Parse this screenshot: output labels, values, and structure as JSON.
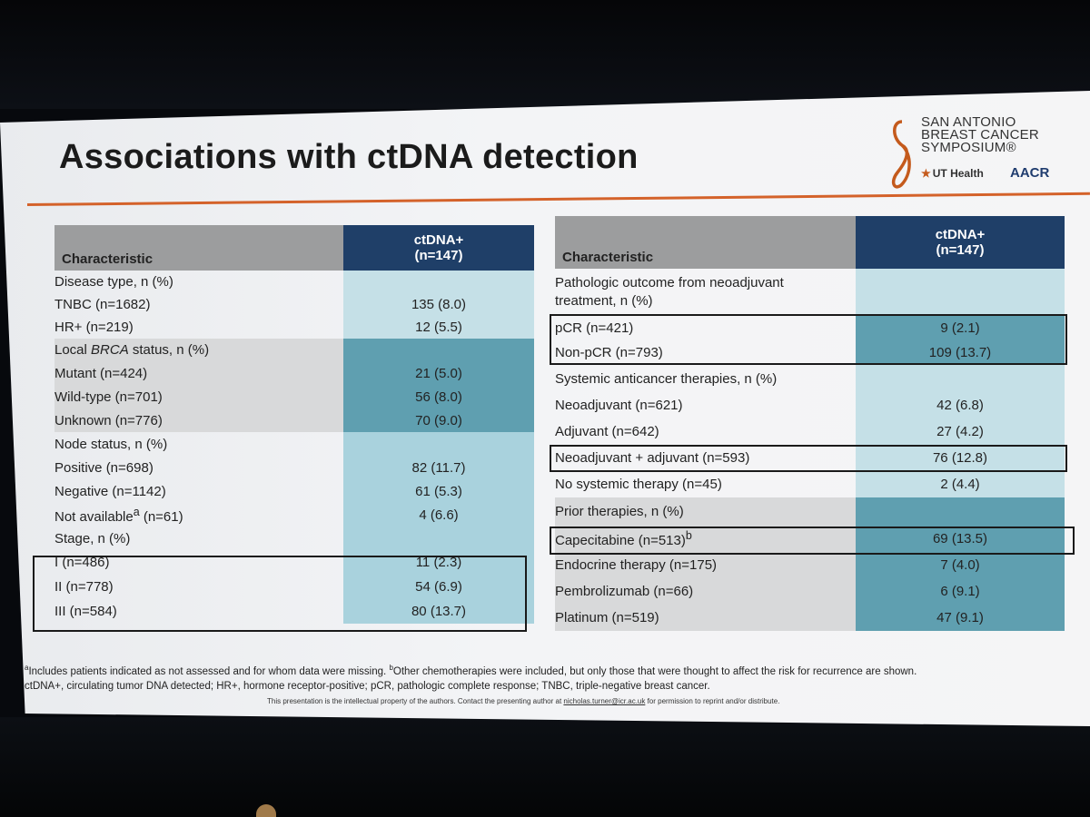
{
  "slide": {
    "title": "Associations with ctDNA detection",
    "logo": {
      "line1": "SAN ANTONIO",
      "line2": "BREAST CANCER",
      "line3": "SYMPOSIUM®",
      "ut": "UT Health",
      "aacr": "AACR",
      "icons": [
        "breast-cancer-ribbon-icon",
        "ut-star-icon"
      ],
      "accent": "#c45a1c"
    },
    "left_table": {
      "header": {
        "characteristic": "Characteristic",
        "ctdna_line1": "ctDNA+",
        "ctdna_line2": "(n=147)"
      },
      "rows": [
        {
          "label": "Disease type, n (%)",
          "value": ""
        },
        {
          "label": "TNBC (n=1682)",
          "value": "135 (8.0)"
        },
        {
          "label": "HR+ (n=219)",
          "value": "12 (5.5)"
        },
        {
          "label_pre": "Local ",
          "label_em": "BRCA",
          "label_post": " status, n (%)",
          "value": ""
        },
        {
          "label": "Mutant (n=424)",
          "value": "21 (5.0)"
        },
        {
          "label": "Wild-type (n=701)",
          "value": "56 (8.0)"
        },
        {
          "label": "Unknown (n=776)",
          "value": "70 (9.0)"
        },
        {
          "label": "Node status, n (%)",
          "value": ""
        },
        {
          "label": "Positive (n=698)",
          "value": "82 (11.7)"
        },
        {
          "label": "Negative (n=1142)",
          "value": "61 (5.3)"
        },
        {
          "label": "Not available",
          "sup": "a",
          "label_post": " (n=61)",
          "value": "4 (6.6)"
        },
        {
          "label": "Stage, n (%)",
          "value": ""
        },
        {
          "label": "I (n=486)",
          "value": "11 (2.3)"
        },
        {
          "label": "II (n=778)",
          "value": "54 (6.9)"
        },
        {
          "label": "III (n=584)",
          "value": "80 (13.7)"
        }
      ]
    },
    "right_table": {
      "header": {
        "characteristic": "Characteristic",
        "ctdna_line1": "ctDNA+",
        "ctdna_line2": "(n=147)"
      },
      "rows": [
        {
          "label": "Pathologic outcome from neoadjuvant",
          "label2": "treatment, n (%)",
          "value": ""
        },
        {
          "label": "pCR (n=421)",
          "value": "9 (2.1)"
        },
        {
          "label": "Non-pCR (n=793)",
          "value": "109 (13.7)"
        },
        {
          "label": "Systemic anticancer therapies, n (%)",
          "value": ""
        },
        {
          "label": "Neoadjuvant (n=621)",
          "value": "42 (6.8)"
        },
        {
          "label": "Adjuvant (n=642)",
          "value": "27 (4.2)"
        },
        {
          "label": "Neoadjuvant + adjuvant (n=593)",
          "value": "76 (12.8)"
        },
        {
          "label": "No systemic therapy (n=45)",
          "value": "2 (4.4)"
        },
        {
          "label": "Prior therapies, n (%)",
          "value": ""
        },
        {
          "label": "Capecitabine (n=513)",
          "sup": "b",
          "value": "69 (13.5)"
        },
        {
          "label": "Endocrine therapy (n=175)",
          "value": "7 (4.0)"
        },
        {
          "label": "Pembrolizumab (n=66)",
          "value": "6 (9.1)"
        },
        {
          "label": "Platinum (n=519)",
          "value": "47 (9.1)"
        }
      ]
    },
    "footnotes": {
      "a_mark": "a",
      "a_text": "Includes patients indicated as not assessed and for whom data were missing. ",
      "b_mark": "b",
      "b_text": "Other chemotherapies were included, but only those that were thought to affect the risk for recurrence are shown.",
      "abbrev": "ctDNA+, circulating tumor DNA detected; HR+, hormone receptor-positive; pCR, pathologic complete response; TNBC, triple-negative breast cancer."
    },
    "property": {
      "pre": "This presentation is the intellectual property of the authors. Contact the presenting author at ",
      "email": "nicholas.turner@icr.ac.uk",
      "post": " for permission to reprint and/or distribute."
    },
    "colors": {
      "header_dark": "#1f3f68",
      "header_gray": "#9c9d9e",
      "cell_light": "#c5e0e7",
      "cell_dark": "#5f9fb0",
      "accent_line": "#d4622a"
    }
  }
}
